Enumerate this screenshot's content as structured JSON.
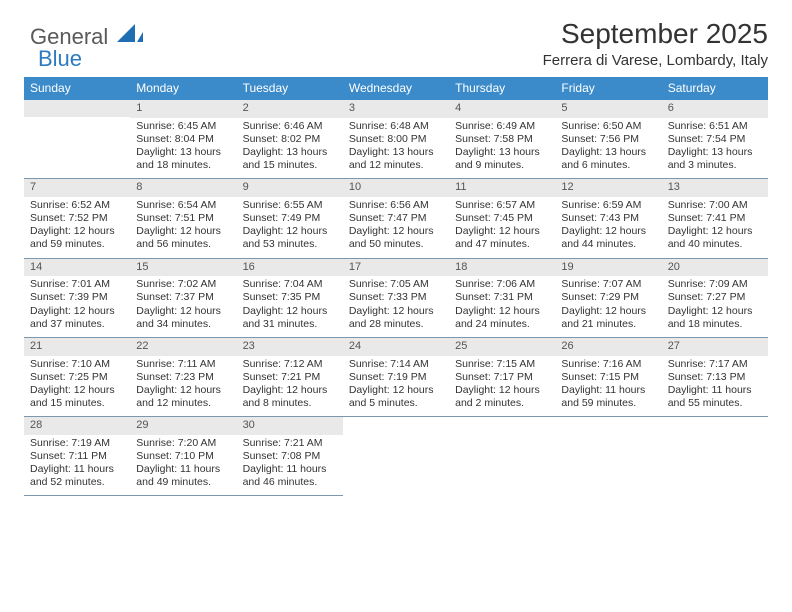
{
  "colors": {
    "header_bg": "#3b8bca",
    "header_text": "#ffffff",
    "daynum_bg": "#e9e9e9",
    "daynum_text": "#555555",
    "body_text": "#333333",
    "rule": "#7a99b0",
    "logo_gray": "#5a5a5a",
    "logo_blue": "#2f7bbf"
  },
  "typography": {
    "title_fontsize": 28,
    "location_fontsize": 15,
    "header_fontsize": 12,
    "daynum_fontsize": 11,
    "body_fontsize": 10.5
  },
  "logo": {
    "part1": "General",
    "part2": "Blue"
  },
  "title": "September 2025",
  "location": "Ferrera di Varese, Lombardy, Italy",
  "weekdays": [
    "Sunday",
    "Monday",
    "Tuesday",
    "Wednesday",
    "Thursday",
    "Friday",
    "Saturday"
  ],
  "grid": {
    "columns": 7,
    "rows": 5,
    "first_weekday_index": 1,
    "days_in_month": 30
  },
  "days": [
    {
      "n": 1,
      "sunrise": "6:45 AM",
      "sunset": "8:04 PM",
      "daylight": "13 hours and 18 minutes."
    },
    {
      "n": 2,
      "sunrise": "6:46 AM",
      "sunset": "8:02 PM",
      "daylight": "13 hours and 15 minutes."
    },
    {
      "n": 3,
      "sunrise": "6:48 AM",
      "sunset": "8:00 PM",
      "daylight": "13 hours and 12 minutes."
    },
    {
      "n": 4,
      "sunrise": "6:49 AM",
      "sunset": "7:58 PM",
      "daylight": "13 hours and 9 minutes."
    },
    {
      "n": 5,
      "sunrise": "6:50 AM",
      "sunset": "7:56 PM",
      "daylight": "13 hours and 6 minutes."
    },
    {
      "n": 6,
      "sunrise": "6:51 AM",
      "sunset": "7:54 PM",
      "daylight": "13 hours and 3 minutes."
    },
    {
      "n": 7,
      "sunrise": "6:52 AM",
      "sunset": "7:52 PM",
      "daylight": "12 hours and 59 minutes."
    },
    {
      "n": 8,
      "sunrise": "6:54 AM",
      "sunset": "7:51 PM",
      "daylight": "12 hours and 56 minutes."
    },
    {
      "n": 9,
      "sunrise": "6:55 AM",
      "sunset": "7:49 PM",
      "daylight": "12 hours and 53 minutes."
    },
    {
      "n": 10,
      "sunrise": "6:56 AM",
      "sunset": "7:47 PM",
      "daylight": "12 hours and 50 minutes."
    },
    {
      "n": 11,
      "sunrise": "6:57 AM",
      "sunset": "7:45 PM",
      "daylight": "12 hours and 47 minutes."
    },
    {
      "n": 12,
      "sunrise": "6:59 AM",
      "sunset": "7:43 PM",
      "daylight": "12 hours and 44 minutes."
    },
    {
      "n": 13,
      "sunrise": "7:00 AM",
      "sunset": "7:41 PM",
      "daylight": "12 hours and 40 minutes."
    },
    {
      "n": 14,
      "sunrise": "7:01 AM",
      "sunset": "7:39 PM",
      "daylight": "12 hours and 37 minutes."
    },
    {
      "n": 15,
      "sunrise": "7:02 AM",
      "sunset": "7:37 PM",
      "daylight": "12 hours and 34 minutes."
    },
    {
      "n": 16,
      "sunrise": "7:04 AM",
      "sunset": "7:35 PM",
      "daylight": "12 hours and 31 minutes."
    },
    {
      "n": 17,
      "sunrise": "7:05 AM",
      "sunset": "7:33 PM",
      "daylight": "12 hours and 28 minutes."
    },
    {
      "n": 18,
      "sunrise": "7:06 AM",
      "sunset": "7:31 PM",
      "daylight": "12 hours and 24 minutes."
    },
    {
      "n": 19,
      "sunrise": "7:07 AM",
      "sunset": "7:29 PM",
      "daylight": "12 hours and 21 minutes."
    },
    {
      "n": 20,
      "sunrise": "7:09 AM",
      "sunset": "7:27 PM",
      "daylight": "12 hours and 18 minutes."
    },
    {
      "n": 21,
      "sunrise": "7:10 AM",
      "sunset": "7:25 PM",
      "daylight": "12 hours and 15 minutes."
    },
    {
      "n": 22,
      "sunrise": "7:11 AM",
      "sunset": "7:23 PM",
      "daylight": "12 hours and 12 minutes."
    },
    {
      "n": 23,
      "sunrise": "7:12 AM",
      "sunset": "7:21 PM",
      "daylight": "12 hours and 8 minutes."
    },
    {
      "n": 24,
      "sunrise": "7:14 AM",
      "sunset": "7:19 PM",
      "daylight": "12 hours and 5 minutes."
    },
    {
      "n": 25,
      "sunrise": "7:15 AM",
      "sunset": "7:17 PM",
      "daylight": "12 hours and 2 minutes."
    },
    {
      "n": 26,
      "sunrise": "7:16 AM",
      "sunset": "7:15 PM",
      "daylight": "11 hours and 59 minutes."
    },
    {
      "n": 27,
      "sunrise": "7:17 AM",
      "sunset": "7:13 PM",
      "daylight": "11 hours and 55 minutes."
    },
    {
      "n": 28,
      "sunrise": "7:19 AM",
      "sunset": "7:11 PM",
      "daylight": "11 hours and 52 minutes."
    },
    {
      "n": 29,
      "sunrise": "7:20 AM",
      "sunset": "7:10 PM",
      "daylight": "11 hours and 49 minutes."
    },
    {
      "n": 30,
      "sunrise": "7:21 AM",
      "sunset": "7:08 PM",
      "daylight": "11 hours and 46 minutes."
    }
  ],
  "labels": {
    "sunrise": "Sunrise:",
    "sunset": "Sunset:",
    "daylight": "Daylight:"
  }
}
